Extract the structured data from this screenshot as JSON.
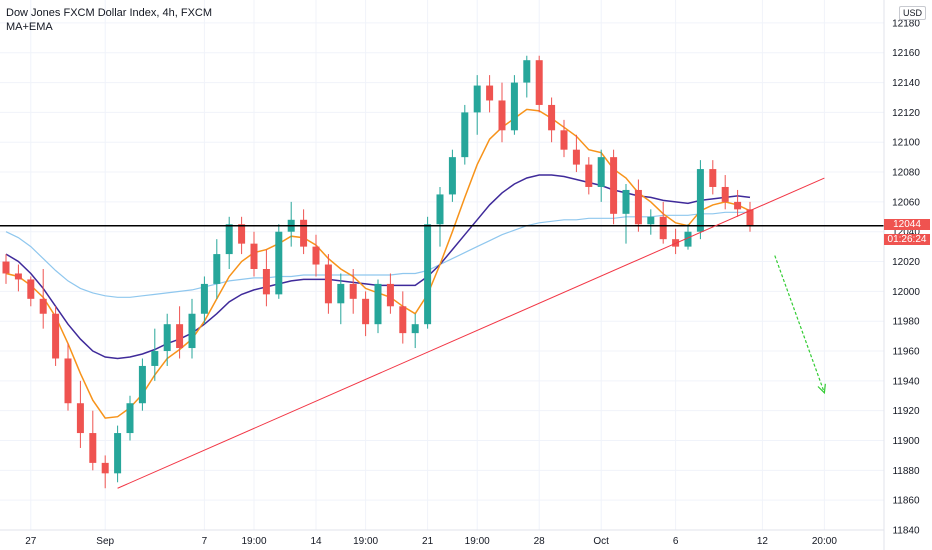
{
  "legend": {
    "title": "Dow Jones FXCM Dollar Index, 4h, FXCM",
    "indicator": "MA+EMA"
  },
  "currency_badge": "USD",
  "price_tags": {
    "last_price": "12044",
    "countdown": "01:26:24"
  },
  "chart_data": {
    "type": "candlestick",
    "title": "Dow Jones FXCM Dollar Index, 4h, FXCM",
    "ylim": [
      11840,
      12190
    ],
    "y_ticks": [
      11840,
      11860,
      11880,
      11900,
      11920,
      11940,
      11960,
      11980,
      12000,
      12020,
      12040,
      12060,
      12080,
      12100,
      12120,
      12140,
      12160,
      12180
    ],
    "x_ticks": [
      {
        "i": 2,
        "label": "27"
      },
      {
        "i": 8,
        "label": "Sep"
      },
      {
        "i": 16,
        "label": "7"
      },
      {
        "i": 20,
        "label": "19:00"
      },
      {
        "i": 25,
        "label": "14"
      },
      {
        "i": 29,
        "label": "19:00"
      },
      {
        "i": 34,
        "label": "21"
      },
      {
        "i": 38,
        "label": "19:00"
      },
      {
        "i": 43,
        "label": "28"
      },
      {
        "i": 48,
        "label": "Oct"
      },
      {
        "i": 54,
        "label": "6"
      },
      {
        "i": 61,
        "label": "12"
      },
      {
        "i": 66,
        "label": "20:00"
      }
    ],
    "candles": [
      [
        12020,
        12025,
        12005,
        12012
      ],
      [
        12012,
        12018,
        12000,
        12008
      ],
      [
        12008,
        12010,
        11990,
        11995
      ],
      [
        11995,
        12015,
        11975,
        11985
      ],
      [
        11985,
        11990,
        11950,
        11955
      ],
      [
        11955,
        11965,
        11920,
        11925
      ],
      [
        11925,
        11940,
        11895,
        11905
      ],
      [
        11905,
        11920,
        11880,
        11885
      ],
      [
        11885,
        11890,
        11868,
        11878
      ],
      [
        11878,
        11910,
        11872,
        11905
      ],
      [
        11905,
        11930,
        11900,
        11925
      ],
      [
        11925,
        11955,
        11920,
        11950
      ],
      [
        11950,
        11975,
        11940,
        11960
      ],
      [
        11960,
        11985,
        11950,
        11978
      ],
      [
        11978,
        11990,
        11955,
        11962
      ],
      [
        11962,
        11995,
        11955,
        11985
      ],
      [
        11985,
        12010,
        11978,
        12005
      ],
      [
        12005,
        12035,
        11995,
        12025
      ],
      [
        12025,
        12050,
        12015,
        12045
      ],
      [
        12045,
        12050,
        12025,
        12032
      ],
      [
        12032,
        12040,
        12010,
        12015
      ],
      [
        12015,
        12028,
        11990,
        11998
      ],
      [
        11998,
        12045,
        11995,
        12040
      ],
      [
        12040,
        12060,
        12030,
        12048
      ],
      [
        12048,
        12055,
        12025,
        12030
      ],
      [
        12030,
        12038,
        12010,
        12018
      ],
      [
        12018,
        12025,
        11985,
        11992
      ],
      [
        11992,
        12012,
        11978,
        12005
      ],
      [
        12005,
        12015,
        11985,
        11995
      ],
      [
        11995,
        12000,
        11970,
        11978
      ],
      [
        11978,
        12008,
        11972,
        12005
      ],
      [
        12005,
        12012,
        11985,
        11990
      ],
      [
        11990,
        12000,
        11965,
        11972
      ],
      [
        11972,
        11985,
        11962,
        11978
      ],
      [
        11978,
        12050,
        11975,
        12045
      ],
      [
        12045,
        12070,
        12030,
        12065
      ],
      [
        12065,
        12095,
        12060,
        12090
      ],
      [
        12090,
        12125,
        12085,
        12120
      ],
      [
        12120,
        12145,
        12105,
        12138
      ],
      [
        12138,
        12145,
        12120,
        12128
      ],
      [
        12128,
        12140,
        12100,
        12108
      ],
      [
        12108,
        12145,
        12105,
        12140
      ],
      [
        12140,
        12158,
        12130,
        12155
      ],
      [
        12155,
        12158,
        12120,
        12125
      ],
      [
        12125,
        12130,
        12100,
        12108
      ],
      [
        12108,
        12115,
        12090,
        12095
      ],
      [
        12095,
        12105,
        12080,
        12085
      ],
      [
        12085,
        12090,
        12065,
        12070
      ],
      [
        12070,
        12095,
        12060,
        12090
      ],
      [
        12090,
        12095,
        12045,
        12052
      ],
      [
        12052,
        12072,
        12032,
        12068
      ],
      [
        12068,
        12075,
        12040,
        12045
      ],
      [
        12045,
        12055,
        12038,
        12050
      ],
      [
        12050,
        12060,
        12032,
        12035
      ],
      [
        12035,
        12042,
        12025,
        12030
      ],
      [
        12030,
        12045,
        12028,
        12040
      ],
      [
        12040,
        12088,
        12035,
        12082
      ],
      [
        12082,
        12088,
        12065,
        12070
      ],
      [
        12070,
        12078,
        12055,
        12060
      ],
      [
        12060,
        12068,
        12050,
        12055
      ],
      [
        12055,
        12060,
        12040,
        12044
      ]
    ],
    "ema_fast": [
      12012,
      12010,
      12004,
      11996,
      11983,
      11965,
      11945,
      11927,
      11915,
      11916,
      11922,
      11931,
      11944,
      11955,
      11961,
      11968,
      11980,
      11995,
      12010,
      12020,
      12026,
      12028,
      12032,
      12037,
      12036,
      12031,
      12022,
      12015,
      12010,
      12002,
      11999,
      11996,
      11990,
      11985,
      11998,
      12018,
      12040,
      12063,
      12085,
      12102,
      12110,
      12116,
      12122,
      12121,
      12116,
      12110,
      12104,
      12095,
      12093,
      12082,
      12076,
      12066,
      12060,
      12052,
      12046,
      12044,
      12054,
      12058,
      12060,
      12058,
      12054
    ],
    "ma_mid": [
      12025,
      12020,
      12012,
      12002,
      11990,
      11978,
      11968,
      11960,
      11956,
      11955,
      11956,
      11958,
      11961,
      11965,
      11968,
      11972,
      11978,
      11985,
      11993,
      11998,
      12001,
      12003,
      12005,
      12007,
      12008,
      12008,
      12008,
      12007,
      12006,
      12005,
      12004,
      12004,
      12004,
      12004,
      12010,
      12018,
      12028,
      12038,
      12048,
      12058,
      12066,
      12072,
      12076,
      12078,
      12078,
      12077,
      12075,
      12073,
      12071,
      12068,
      12066,
      12064,
      12063,
      12061,
      12060,
      12059,
      12061,
      12062,
      12063,
      12064,
      12063
    ],
    "ma_slow": [
      12040,
      12036,
      12030,
      12022,
      12014,
      12007,
      12002,
      11999,
      11997,
      11996,
      11996,
      11997,
      11998,
      11999,
      12000,
      12001,
      12003,
      12005,
      12007,
      12008,
      12009,
      12009,
      12010,
      12010,
      12011,
      12011,
      12011,
      12011,
      12011,
      12011,
      12011,
      12011,
      12012,
      12012,
      12014,
      12018,
      12022,
      12026,
      12030,
      12034,
      12038,
      12041,
      12044,
      12046,
      12047,
      12048,
      12048,
      12049,
      12049,
      12049,
      12050,
      12050,
      12050,
      12051,
      12051,
      12051,
      12052,
      12052,
      12053,
      12053,
      12053
    ],
    "horizontal_level": 12044,
    "trendline": {
      "from": [
        9,
        11868
      ],
      "to": [
        66,
        12076
      ]
    },
    "forecast_arrow": {
      "from": [
        62,
        12024
      ],
      "to": [
        66,
        11932
      ]
    },
    "colors": {
      "up": "#26a69a",
      "down": "#ef5350",
      "ema_fast": "#f7931a",
      "ma_mid": "#3f2a9a",
      "ma_slow": "#8fc7ee",
      "trendline": "#f23645",
      "arrow": "#33cc33",
      "level": "#000000"
    }
  }
}
